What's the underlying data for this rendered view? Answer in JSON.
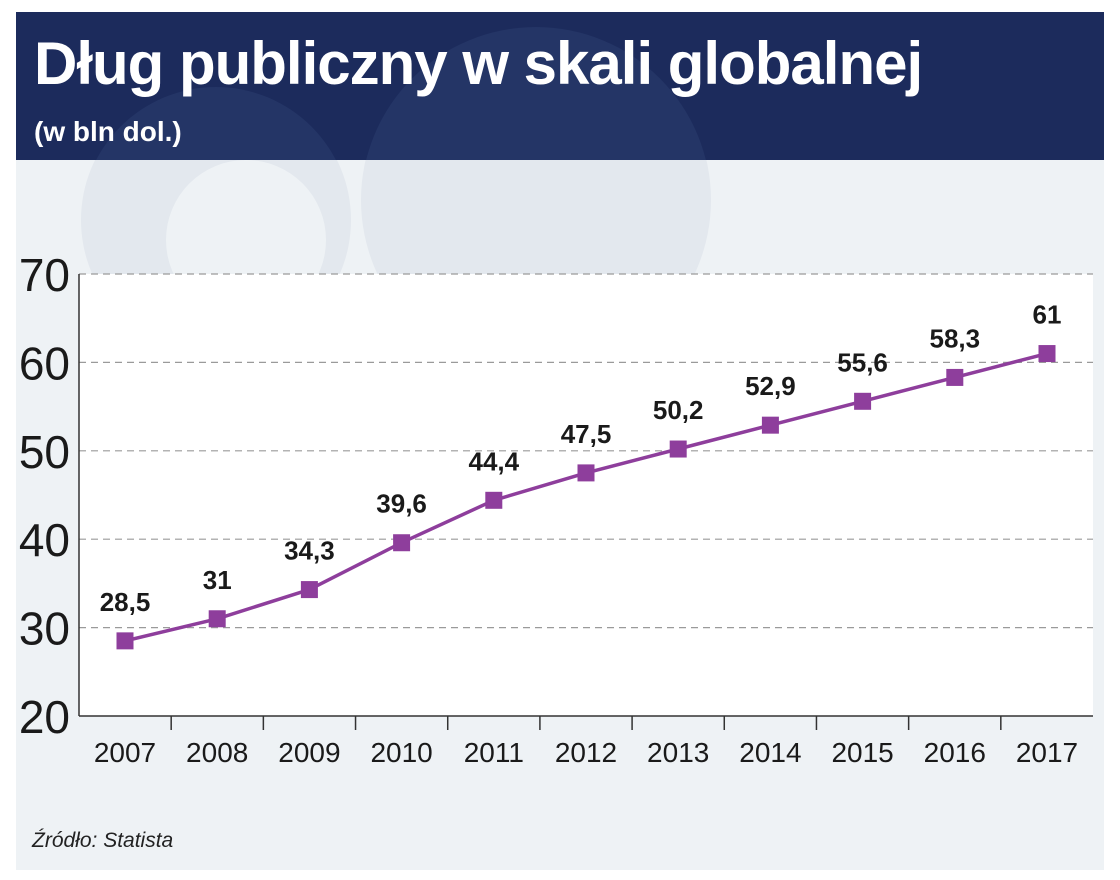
{
  "header": {
    "title": "Dług publiczny w skali globalnej",
    "subtitle": "(w bln dol.)"
  },
  "footer": {
    "source": "Źródło: Statista"
  },
  "colors": {
    "header_bg": "#1c2b5c",
    "panel_bg": "#eef2f5",
    "plot_bg": "#ffffff",
    "series": "#8e3e9c",
    "grid": "#9a9a9a",
    "text": "#1a1a1a"
  },
  "chart_data": {
    "type": "line",
    "title": "Dług publiczny w skali globalnej",
    "subtitle": "(w bln dol.)",
    "xlabel": "",
    "ylabel": "",
    "categories": [
      "2007",
      "2008",
      "2009",
      "2010",
      "2011",
      "2012",
      "2013",
      "2014",
      "2015",
      "2016",
      "2017"
    ],
    "values": [
      28.5,
      31,
      34.3,
      39.6,
      44.4,
      47.5,
      50.2,
      52.9,
      55.6,
      58.3,
      61
    ],
    "data_labels": [
      "28,5",
      "31",
      "34,3",
      "39,6",
      "44,4",
      "47,5",
      "50,2",
      "52,9",
      "55,6",
      "58,3",
      "61"
    ],
    "ylim": [
      20,
      70
    ],
    "yticks": [
      20,
      30,
      40,
      50,
      60,
      70
    ],
    "ytick_labels": [
      "20",
      "30",
      "40",
      "50",
      "60",
      "70"
    ],
    "grid": true,
    "grid_style": "dashed",
    "legend": false,
    "marker": "square"
  }
}
